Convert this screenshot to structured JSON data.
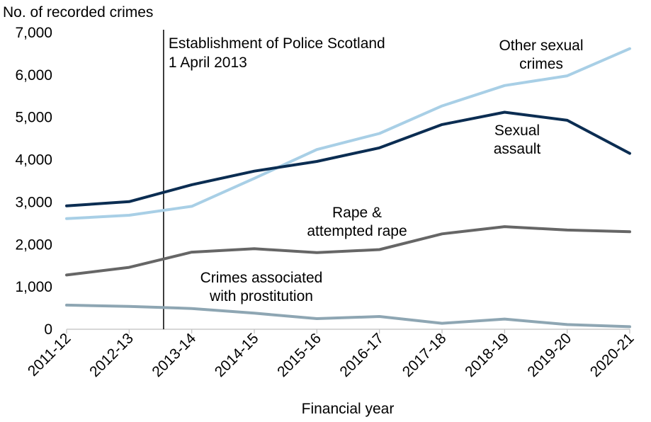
{
  "chart_data": {
    "type": "line",
    "ylabel": "No. of recorded crimes",
    "xlabel": "Financial year",
    "categories": [
      "2011-12",
      "2012-13",
      "2013-14",
      "2014-15",
      "2015-16",
      "2016-17",
      "2017-18",
      "2018-19",
      "2019-20",
      "2020-21"
    ],
    "ylim": [
      0,
      7000
    ],
    "yticks": [
      0,
      1000,
      2000,
      3000,
      4000,
      5000,
      6000,
      7000
    ],
    "ytick_labels": [
      "0",
      "1,000",
      "2,000",
      "3,000",
      "4,000",
      "5,000",
      "6,000",
      "7,000"
    ],
    "grid": false,
    "legend": "none",
    "series": [
      {
        "name": "Other sexual crimes",
        "color": "#a8cfe6",
        "values": [
          2610,
          2690,
          2900,
          3560,
          4240,
          4620,
          5270,
          5750,
          5980,
          6620
        ]
      },
      {
        "name": "Sexual assault",
        "color": "#0b2d52",
        "values": [
          2910,
          3010,
          3410,
          3730,
          3960,
          4280,
          4830,
          5120,
          4930,
          4150
        ]
      },
      {
        "name": "Rape & attempted rape",
        "color": "#666666",
        "values": [
          1280,
          1460,
          1820,
          1900,
          1810,
          1880,
          2250,
          2420,
          2340,
          2300
        ]
      },
      {
        "name": "Crimes associated with prostitution",
        "color": "#8ea6b3",
        "values": [
          570,
          540,
          490,
          380,
          250,
          300,
          140,
          240,
          110,
          60
        ]
      }
    ],
    "series_labels": [
      {
        "series": 0,
        "lines": [
          "Other sexual",
          "crimes"
        ]
      },
      {
        "series": 1,
        "lines": [
          "Sexual",
          "assault"
        ]
      },
      {
        "series": 2,
        "lines": [
          "Rape &",
          "attempted rape"
        ]
      },
      {
        "series": 3,
        "lines": [
          "Crimes associated",
          "with prostitution"
        ]
      }
    ],
    "annotation": {
      "lines": [
        "Establishment of Police Scotland",
        "1 April 2013"
      ],
      "between": [
        "2012-13",
        "2013-14"
      ],
      "at_fraction": 0.55
    }
  }
}
